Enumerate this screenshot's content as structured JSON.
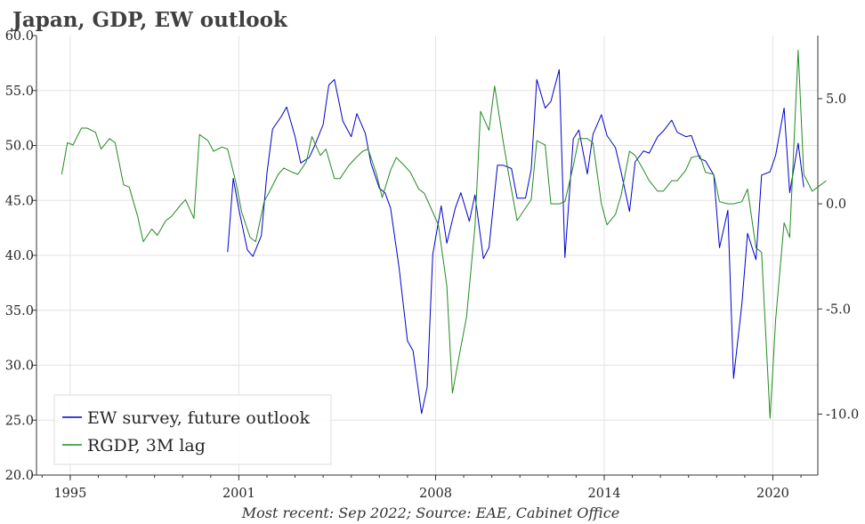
{
  "chart_data": {
    "type": "line",
    "title": "Japan, GDP, EW outlook",
    "source": "Most recent: Sep 2022; Source: EAE, Cabinet Office",
    "x_range": [
      1993.8,
      2021.6
    ],
    "x_ticks": [
      {
        "value": 1995,
        "label": "1995"
      },
      {
        "value": 2001,
        "label": "2001"
      },
      {
        "value": 2008,
        "label": "2008"
      },
      {
        "value": 2014,
        "label": "2014"
      },
      {
        "value": 2020,
        "label": "2020"
      }
    ],
    "y_left": {
      "range": [
        20,
        60
      ],
      "ticks": [
        "20.0",
        "25.0",
        "30.0",
        "35.0",
        "40.0",
        "45.0",
        "50.0",
        "55.0",
        "60.0"
      ]
    },
    "y_right": {
      "range": [
        -12.9,
        8.0
      ],
      "ticks": [
        "-10.0",
        "-5.0",
        "0.0",
        "5.0"
      ],
      "tick_values": [
        -10,
        -5,
        0,
        5
      ]
    },
    "grid": true,
    "legend_placement": "bottom-left",
    "series": [
      {
        "name": "EW survey, future outlook",
        "axis": "left",
        "color": "#0000cc",
        "points": [
          [
            2000.6,
            40.3
          ],
          [
            2000.8,
            47.0
          ],
          [
            2001.0,
            44.2
          ],
          [
            2001.3,
            40.5
          ],
          [
            2001.5,
            39.9
          ],
          [
            2001.8,
            41.8
          ],
          [
            2002.0,
            47.5
          ],
          [
            2002.2,
            51.5
          ],
          [
            2002.5,
            52.6
          ],
          [
            2002.7,
            53.5
          ],
          [
            2003.0,
            50.8
          ],
          [
            2003.2,
            48.4
          ],
          [
            2003.5,
            48.9
          ],
          [
            2003.7,
            50.0
          ],
          [
            2004.0,
            51.9
          ],
          [
            2004.2,
            55.5
          ],
          [
            2004.4,
            56.0
          ],
          [
            2004.7,
            52.2
          ],
          [
            2005.0,
            50.8
          ],
          [
            2005.2,
            52.9
          ],
          [
            2005.5,
            51.1
          ],
          [
            2005.7,
            48.4
          ],
          [
            2006.0,
            46.1
          ],
          [
            2006.2,
            45.7
          ],
          [
            2006.4,
            44.3
          ],
          [
            2006.7,
            38.9
          ],
          [
            2007.0,
            32.2
          ],
          [
            2007.2,
            31.3
          ],
          [
            2007.5,
            25.6
          ],
          [
            2007.7,
            28.0
          ],
          [
            2007.9,
            40.1
          ],
          [
            2008.2,
            44.5
          ],
          [
            2008.4,
            41.1
          ],
          [
            2008.7,
            44.3
          ],
          [
            2008.9,
            45.7
          ],
          [
            2009.2,
            43.1
          ],
          [
            2009.4,
            45.5
          ],
          [
            2009.7,
            39.7
          ],
          [
            2009.9,
            40.7
          ],
          [
            2010.2,
            48.2
          ],
          [
            2010.4,
            48.2
          ],
          [
            2010.7,
            47.9
          ],
          [
            2010.9,
            45.2
          ],
          [
            2011.2,
            45.2
          ],
          [
            2011.4,
            47.8
          ],
          [
            2011.6,
            56.0
          ],
          [
            2011.9,
            53.4
          ],
          [
            2012.1,
            54.0
          ],
          [
            2012.4,
            56.9
          ],
          [
            2012.6,
            39.8
          ],
          [
            2012.9,
            50.6
          ],
          [
            2013.1,
            51.4
          ],
          [
            2013.4,
            47.4
          ],
          [
            2013.6,
            51.0
          ],
          [
            2013.9,
            52.8
          ],
          [
            2014.1,
            50.9
          ],
          [
            2014.4,
            49.8
          ],
          [
            2014.6,
            47.6
          ],
          [
            2014.9,
            44.0
          ],
          [
            2015.1,
            48.5
          ],
          [
            2015.4,
            49.5
          ],
          [
            2015.6,
            49.3
          ],
          [
            2015.9,
            50.8
          ],
          [
            2016.1,
            51.3
          ],
          [
            2016.4,
            52.3
          ],
          [
            2016.6,
            51.2
          ],
          [
            2016.9,
            50.8
          ],
          [
            2017.1,
            50.9
          ],
          [
            2017.4,
            48.8
          ],
          [
            2017.6,
            48.6
          ],
          [
            2017.9,
            47.3
          ],
          [
            2018.1,
            40.7
          ],
          [
            2018.4,
            44.1
          ],
          [
            2018.6,
            28.8
          ],
          [
            2018.9,
            35.6
          ],
          [
            2019.1,
            42.0
          ],
          [
            2019.4,
            39.6
          ],
          [
            2019.6,
            47.3
          ],
          [
            2019.9,
            47.6
          ],
          [
            2020.1,
            49.1
          ],
          [
            2020.4,
            53.4
          ],
          [
            2020.6,
            45.7
          ],
          [
            2020.9,
            50.2
          ],
          [
            2021.1,
            46.2
          ]
        ]
      },
      {
        "name": "RGDP, 3M lag",
        "axis": "right",
        "color": "#228B22",
        "points": [
          [
            1994.7,
            1.4
          ],
          [
            1994.9,
            2.9
          ],
          [
            1995.1,
            2.8
          ],
          [
            1995.4,
            3.6
          ],
          [
            1995.6,
            3.6
          ],
          [
            1995.9,
            3.4
          ],
          [
            1996.1,
            2.6
          ],
          [
            1996.4,
            3.1
          ],
          [
            1996.6,
            2.9
          ],
          [
            1996.9,
            0.9
          ],
          [
            1997.1,
            0.8
          ],
          [
            1997.4,
            -0.6
          ],
          [
            1997.6,
            -1.8
          ],
          [
            1997.9,
            -1.2
          ],
          [
            1998.1,
            -1.5
          ],
          [
            1998.4,
            -0.8
          ],
          [
            1998.6,
            -0.6
          ],
          [
            1998.9,
            -0.1
          ],
          [
            1999.1,
            0.2
          ],
          [
            1999.4,
            -0.7
          ],
          [
            1999.6,
            3.3
          ],
          [
            1999.9,
            3.0
          ],
          [
            2000.1,
            2.5
          ],
          [
            2000.4,
            2.7
          ],
          [
            2000.6,
            2.6
          ],
          [
            2000.9,
            1.0
          ],
          [
            2001.1,
            -0.4
          ],
          [
            2001.4,
            -1.6
          ],
          [
            2001.6,
            -1.8
          ],
          [
            2001.9,
            0.1
          ],
          [
            2002.1,
            0.6
          ],
          [
            2002.4,
            1.4
          ],
          [
            2002.6,
            1.7
          ],
          [
            2002.9,
            1.5
          ],
          [
            2003.1,
            1.4
          ],
          [
            2003.4,
            2.0
          ],
          [
            2003.6,
            3.2
          ],
          [
            2003.9,
            2.3
          ],
          [
            2004.1,
            2.6
          ],
          [
            2004.4,
            1.2
          ],
          [
            2004.6,
            1.2
          ],
          [
            2004.9,
            1.8
          ],
          [
            2005.1,
            2.1
          ],
          [
            2005.4,
            2.5
          ],
          [
            2005.6,
            2.6
          ],
          [
            2005.9,
            1.4
          ],
          [
            2006.1,
            0.3
          ],
          [
            2006.4,
            1.6
          ],
          [
            2006.6,
            2.2
          ],
          [
            2006.9,
            1.8
          ],
          [
            2007.1,
            1.5
          ],
          [
            2007.4,
            0.7
          ],
          [
            2007.6,
            0.5
          ],
          [
            2007.9,
            -0.4
          ],
          [
            2008.1,
            -1.0
          ],
          [
            2008.4,
            -3.9
          ],
          [
            2008.6,
            -9.0
          ],
          [
            2008.9,
            -6.8
          ],
          [
            2009.1,
            -5.4
          ],
          [
            2009.4,
            -1.1
          ],
          [
            2009.6,
            4.4
          ],
          [
            2009.9,
            3.5
          ],
          [
            2010.1,
            5.6
          ],
          [
            2010.4,
            3.0
          ],
          [
            2010.6,
            1.4
          ],
          [
            2010.9,
            -0.8
          ],
          [
            2011.1,
            -0.4
          ],
          [
            2011.4,
            0.2
          ],
          [
            2011.6,
            3.0
          ],
          [
            2011.9,
            2.8
          ],
          [
            2012.1,
            0.0
          ],
          [
            2012.4,
            0.0
          ],
          [
            2012.6,
            0.1
          ],
          [
            2012.9,
            1.8
          ],
          [
            2013.1,
            3.1
          ],
          [
            2013.4,
            3.1
          ],
          [
            2013.6,
            2.9
          ],
          [
            2013.9,
            0.0
          ],
          [
            2014.1,
            -1.0
          ],
          [
            2014.4,
            -0.5
          ],
          [
            2014.6,
            0.4
          ],
          [
            2014.9,
            2.5
          ],
          [
            2015.1,
            2.3
          ],
          [
            2015.4,
            1.6
          ],
          [
            2015.6,
            1.1
          ],
          [
            2015.9,
            0.6
          ],
          [
            2016.1,
            0.6
          ],
          [
            2016.4,
            1.1
          ],
          [
            2016.6,
            1.1
          ],
          [
            2016.9,
            1.6
          ],
          [
            2017.1,
            2.2
          ],
          [
            2017.4,
            2.3
          ],
          [
            2017.6,
            1.5
          ],
          [
            2017.9,
            1.4
          ],
          [
            2018.1,
            0.1
          ],
          [
            2018.4,
            0.0
          ],
          [
            2018.6,
            0.0
          ],
          [
            2018.9,
            0.1
          ],
          [
            2019.1,
            0.7
          ],
          [
            2019.4,
            -2.1
          ],
          [
            2019.6,
            -2.3
          ],
          [
            2019.9,
            -10.2
          ],
          [
            2020.1,
            -5.5
          ],
          [
            2020.4,
            -0.9
          ],
          [
            2020.6,
            -1.6
          ],
          [
            2020.9,
            7.3
          ],
          [
            2021.1,
            1.4
          ],
          [
            2021.4,
            0.6
          ],
          [
            2021.6,
            0.8
          ],
          [
            2021.9,
            1.1
          ]
        ]
      }
    ]
  }
}
